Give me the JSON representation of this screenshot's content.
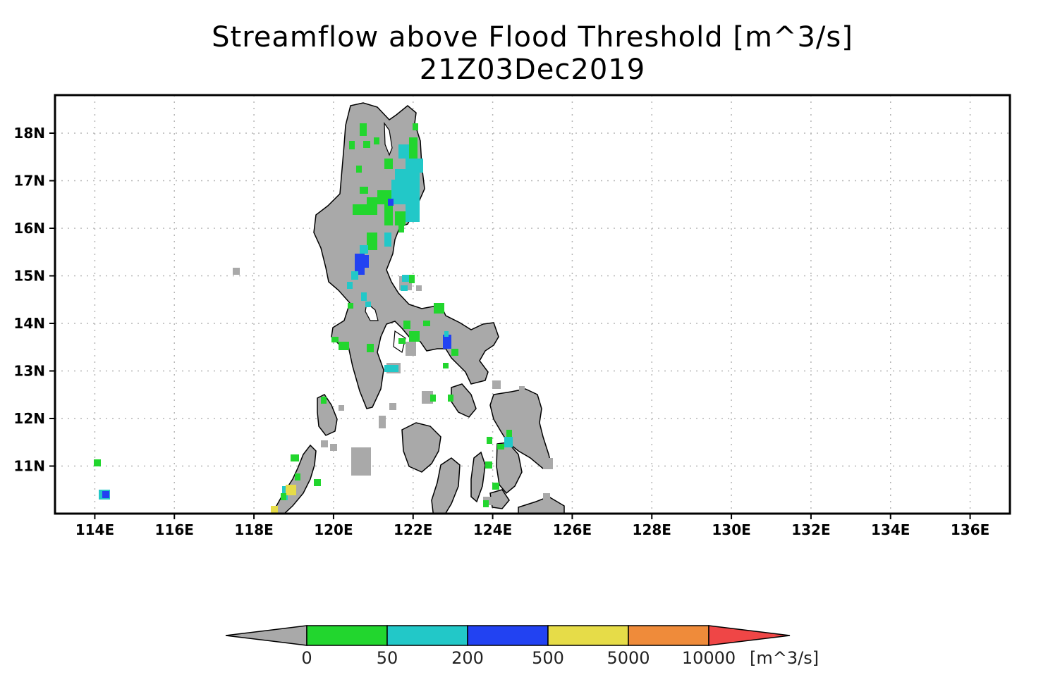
{
  "title": "Streamflow above Flood Threshold [m^3/s]",
  "date": "21Z03Dec2019",
  "map": {
    "lon_range": [
      113.0,
      137.0
    ],
    "lat_range": [
      10.0,
      18.8
    ],
    "lon_ticks": [
      "114E",
      "116E",
      "118E",
      "120E",
      "122E",
      "124E",
      "126E",
      "128E",
      "130E",
      "132E",
      "134E",
      "136E"
    ],
    "lat_ticks": [
      "11N",
      "12N",
      "13N",
      "14N",
      "15N",
      "16N",
      "17N",
      "18N"
    ],
    "grid": "dotted",
    "land_color": "#a9a9a9"
  },
  "colorbar": {
    "labels": [
      "0",
      "50",
      "200",
      "500",
      "5000",
      "10000"
    ],
    "unit": "[m^3/s]",
    "colors": [
      "#a9a9a9",
      "#22d62e",
      "#22c8c8",
      "#2242f2",
      "#e6dc48",
      "#ef8b3a",
      "#ef4646"
    ]
  }
}
